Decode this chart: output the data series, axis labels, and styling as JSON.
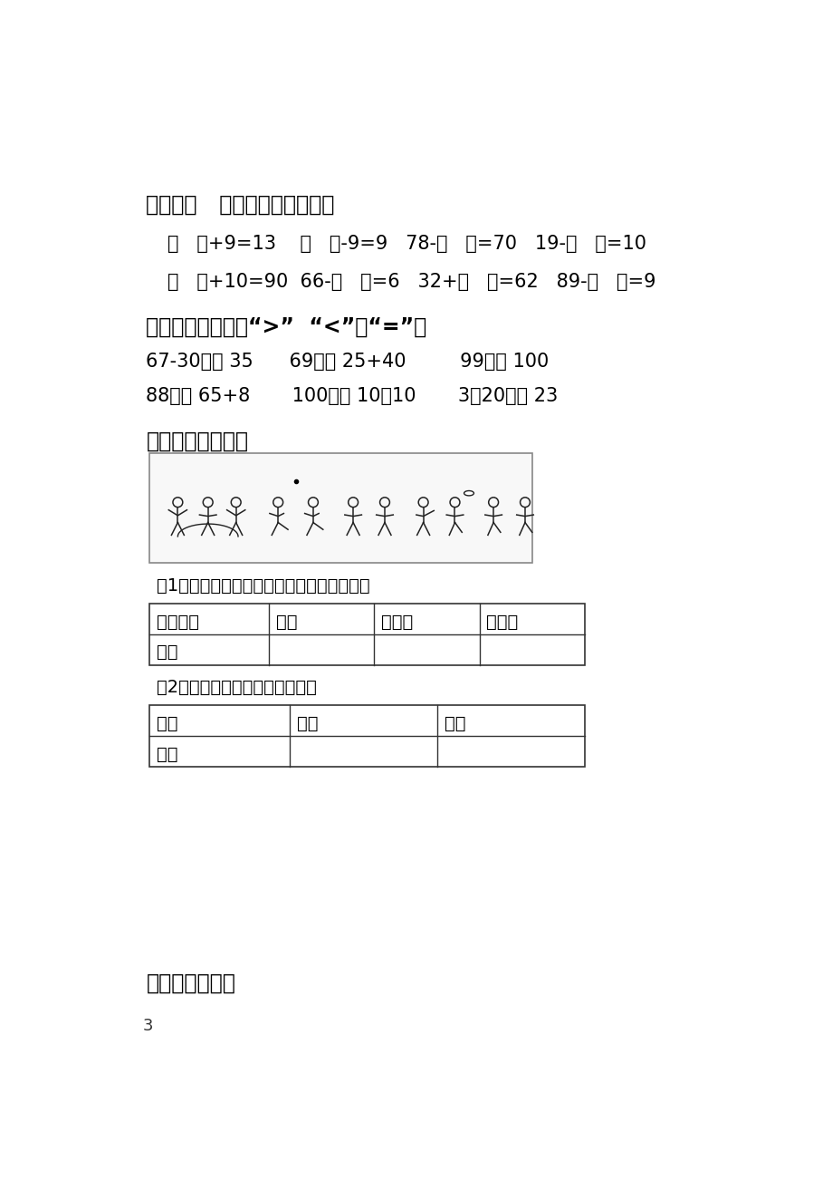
{
  "bg_color": "#ffffff",
  "text_color": "#000000",
  "section4_title": "四、在（   ）里填上合适的数。",
  "section4_row1": "（   ）+9=13    （   ）-9=9   78-（   ）=70   19-（   ）=10",
  "section4_row2": "（   ）+10=90  66-（   ）=6   32+（   ）=62   89-（   ）=9",
  "section5_title": "五、在（）里填上“>”  “<”或“=”。",
  "section5_row1": "67-30（） 35      69（） 25+40         99（） 100",
  "section5_row2": "88（） 65+8       100（） 10＋10       3＋20（） 23",
  "section6_title": "六、看图填一填。",
  "section6_sub1": "（1）按不同的活动项目分一分，填写下表。",
  "section6_sub2": "（2）按性别分一分，填写下表。",
  "table1_headers": [
    "活动项目",
    "跳绳",
    "踢徵子",
    "掷铁饼"
  ],
  "table1_row1": [
    "人数",
    "",
    "",
    ""
  ],
  "table2_headers": [
    "性别",
    "男孩",
    "女孩"
  ],
  "table2_row1": [
    "人数",
    "",
    ""
  ],
  "section7_title": "七、看图列式。",
  "page_number": "3"
}
